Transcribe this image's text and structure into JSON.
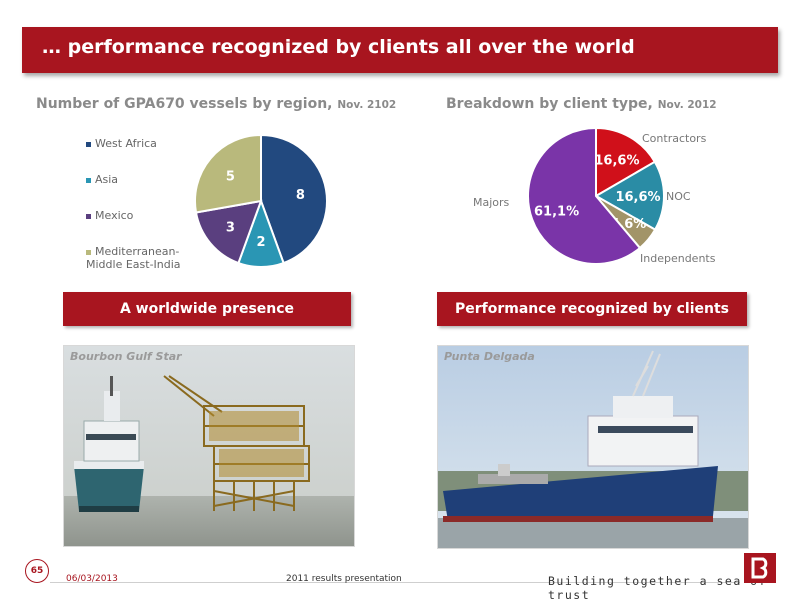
{
  "title": "… performance recognized by clients all over the world",
  "left_chart": {
    "title": "Number of GPA670 vessels by region, ",
    "title_suffix": "Nov. 2102",
    "legend": [
      "West Africa",
      "Asia",
      "Mexico",
      "Mediterranean-Middle East-India"
    ],
    "colors": [
      "#22497f",
      "#2a96b4",
      "#5a3f7f",
      "#b9b97c"
    ],
    "slice_labels": [
      "8",
      "2",
      "3",
      "5"
    ]
  },
  "right_chart": {
    "title": "Breakdown by client type, ",
    "title_suffix": "Nov. 2012",
    "labels": [
      "Contractors",
      "NOC",
      "Independents",
      "Majors"
    ],
    "slice_labels": [
      "16,6%",
      "16,6%",
      "5,6%",
      "61,1%"
    ],
    "colors": [
      "#d0101a",
      "#2a8ca5",
      "#a29468",
      "#7a34a8"
    ]
  },
  "chart_data": [
    {
      "type": "pie",
      "title": "Number of GPA670 vessels by region, Nov. 2102",
      "categories": [
        "West Africa",
        "Asia",
        "Mexico",
        "Mediterranean-Middle East-India"
      ],
      "values": [
        8,
        2,
        3,
        5
      ],
      "legend": "left"
    },
    {
      "type": "pie",
      "title": "Breakdown by client type, Nov. 2012",
      "categories": [
        "Contractors",
        "NOC",
        "Independents",
        "Majors"
      ],
      "values": [
        16.6,
        16.6,
        5.6,
        61.1
      ]
    }
  ],
  "sections": {
    "left_button": "A worldwide presence",
    "right_button": "Performance recognized by clients"
  },
  "photos": {
    "left_caption": "Bourbon Gulf Star",
    "right_caption": "Punta Delgada"
  },
  "footer": {
    "page_number": "65",
    "date": "06/03/2013",
    "presentation": "2011 results presentation",
    "tagline": "Building together a sea of trust"
  }
}
